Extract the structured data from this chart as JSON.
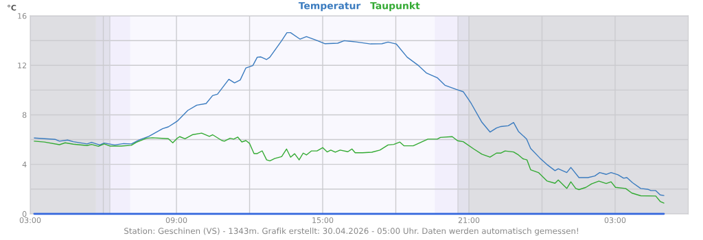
{
  "chart_data": {
    "type": "line",
    "ylabel": "°C",
    "annotations": [
      "Station: Geschinen (VS) - 1343m. Grafik erstellt: 30.04.2026 - 05:00 Uhr. Daten werden automatisch gemessen!"
    ],
    "xlim": [
      "2026-04-29T03:00",
      "2026-04-30T06:00"
    ],
    "xticks": [
      {
        "value": "2026-04-29T03:00",
        "label": "03:00"
      },
      {
        "value": "2026-04-29T06:00",
        "label": null
      },
      {
        "value": "2026-04-29T09:00",
        "label": "09:00"
      },
      {
        "value": "2026-04-29T12:00",
        "label": null
      },
      {
        "value": "2026-04-29T15:00",
        "label": "15:00"
      },
      {
        "value": "2026-04-29T18:00",
        "label": null
      },
      {
        "value": "2026-04-29T21:00",
        "label": "21:00"
      },
      {
        "value": "2026-04-30T00:00",
        "label": null
      },
      {
        "value": "2026-04-30T03:00",
        "label": "03:00"
      }
    ],
    "ylim": [
      0,
      16
    ],
    "yticks": [
      0,
      {
        "value": 2,
        "label": null
      },
      4,
      {
        "value": 6,
        "label": null
      },
      8,
      {
        "value": 10,
        "label": null
      },
      12,
      {
        "value": 14,
        "label": null
      },
      16
    ],
    "grid": true,
    "legend": "top",
    "marker": "none",
    "line_style": "solid",
    "bands": [
      {
        "axis": "x",
        "from": "2026-04-29T03:00",
        "to": "2026-04-29T05:42",
        "color": "#dedee2"
      },
      {
        "axis": "x",
        "from": "2026-04-29T05:42",
        "to": "2026-04-29T06:16",
        "color": "#e2e1ec"
      },
      {
        "axis": "x",
        "from": "2026-04-29T06:16",
        "to": "2026-04-29T07:06",
        "color": "#f2effc"
      },
      {
        "axis": "x",
        "from": "2026-04-29T19:36",
        "to": "2026-04-29T20:33",
        "color": "#f2effc"
      },
      {
        "axis": "x",
        "from": "2026-04-29T20:33",
        "to": "2026-04-29T21:00",
        "color": "#e2e1ec"
      },
      {
        "axis": "x",
        "from": "2026-04-29T21:00",
        "to": "2026-04-30T06:00",
        "color": "#dedee2"
      }
    ],
    "ref_lines": [
      {
        "axis": "x",
        "value": "2026-04-29T06:16",
        "color": "#d0d0d8"
      },
      {
        "axis": "x",
        "value": "2026-04-29T20:33",
        "color": "#d0d0d8"
      }
    ],
    "series": [
      {
        "name": "Temperatur",
        "color": "#3a7bbf",
        "x": [
          "2026-04-29T03:10",
          "2026-04-29T03:35",
          "2026-04-29T04:01",
          "2026-04-29T04:12",
          "2026-04-29T04:32",
          "2026-04-29T04:46",
          "2026-04-29T05:20",
          "2026-04-29T05:31",
          "2026-04-29T05:51",
          "2026-04-29T06:02",
          "2026-04-29T06:28",
          "2026-04-29T06:50",
          "2026-04-29T07:09",
          "2026-04-29T07:29",
          "2026-04-29T07:52",
          "2026-04-29T08:26",
          "2026-04-29T08:40",
          "2026-04-29T09:02",
          "2026-04-29T09:28",
          "2026-04-29T09:50",
          "2026-04-29T10:13",
          "2026-04-29T10:29",
          "2026-04-29T10:41",
          "2026-04-29T11:09",
          "2026-04-29T11:23",
          "2026-04-29T11:37",
          "2026-04-29T11:51",
          "2026-04-29T12:08",
          "2026-04-29T12:19",
          "2026-04-29T12:28",
          "2026-04-29T12:42",
          "2026-04-29T12:50",
          "2026-04-29T13:19",
          "2026-04-29T13:32",
          "2026-04-29T13:41",
          "2026-04-29T14:04",
          "2026-04-29T14:20",
          "2026-04-29T14:43",
          "2026-04-29T15:05",
          "2026-04-29T15:37",
          "2026-04-29T15:53",
          "2026-04-29T16:22",
          "2026-04-29T16:58",
          "2026-04-29T17:26",
          "2026-04-29T17:41",
          "2026-04-29T18:01",
          "2026-04-29T18:28",
          "2026-04-29T18:56",
          "2026-04-29T19:16",
          "2026-04-29T19:42",
          "2026-04-29T20:01",
          "2026-04-29T20:29",
          "2026-04-29T20:46",
          "2026-04-29T21:01",
          "2026-04-29T21:06",
          "2026-04-29T21:32",
          "2026-04-29T21:52",
          "2026-04-29T22:08",
          "2026-04-29T22:19",
          "2026-04-29T22:37",
          "2026-04-29T22:50",
          "2026-04-29T23:02",
          "2026-04-29T23:22",
          "2026-04-29T23:32",
          "2026-04-29T23:55",
          "2026-04-30T00:12",
          "2026-04-30T00:32",
          "2026-04-30T00:40",
          "2026-04-30T01:01",
          "2026-04-30T01:11",
          "2026-04-30T01:31",
          "2026-04-30T01:53",
          "2026-04-30T02:10",
          "2026-04-30T02:22",
          "2026-04-30T02:38",
          "2026-04-30T02:50",
          "2026-04-30T03:07",
          "2026-04-30T03:21",
          "2026-04-30T03:29",
          "2026-04-30T03:43",
          "2026-04-30T04:03",
          "2026-04-30T04:20",
          "2026-04-30T04:28",
          "2026-04-30T04:40",
          "2026-04-30T04:51",
          "2026-04-30T05:00"
        ],
        "values": [
          6.13,
          6.07,
          6.02,
          5.87,
          5.96,
          5.83,
          5.65,
          5.78,
          5.57,
          5.72,
          5.57,
          5.68,
          5.65,
          5.98,
          6.26,
          6.88,
          7.03,
          7.49,
          8.36,
          8.78,
          8.91,
          9.56,
          9.67,
          10.87,
          10.58,
          10.82,
          11.79,
          11.98,
          12.66,
          12.68,
          12.47,
          12.66,
          13.99,
          14.64,
          14.64,
          14.12,
          14.32,
          14.05,
          13.75,
          13.79,
          13.99,
          13.89,
          13.73,
          13.75,
          13.88,
          13.73,
          12.66,
          11.98,
          11.37,
          11.0,
          10.39,
          10.06,
          9.87,
          9.15,
          8.9,
          7.4,
          6.61,
          6.94,
          7.06,
          7.12,
          7.38,
          6.66,
          6.05,
          5.28,
          4.5,
          3.99,
          3.49,
          3.64,
          3.34,
          3.75,
          2.93,
          2.93,
          3.06,
          3.34,
          3.19,
          3.34,
          3.16,
          2.88,
          2.93,
          2.51,
          2.05,
          1.99,
          1.88,
          1.88,
          1.53,
          1.48
        ]
      },
      {
        "name": "Taupunkt",
        "color": "#33aa33",
        "x": [
          "2026-04-29T03:10",
          "2026-04-29T03:35",
          "2026-04-29T04:12",
          "2026-04-29T04:26",
          "2026-04-29T04:46",
          "2026-04-29T05:20",
          "2026-04-29T05:31",
          "2026-04-29T05:48",
          "2026-04-29T06:02",
          "2026-04-29T06:16",
          "2026-04-29T06:44",
          "2026-04-29T07:09",
          "2026-04-29T07:21",
          "2026-04-29T07:46",
          "2026-04-29T08:01",
          "2026-04-29T08:40",
          "2026-04-29T08:51",
          "2026-04-29T09:02",
          "2026-04-29T09:08",
          "2026-04-29T09:21",
          "2026-04-29T09:39",
          "2026-04-29T10:02",
          "2026-04-29T10:21",
          "2026-04-29T10:29",
          "2026-04-29T10:52",
          "2026-04-29T10:58",
          "2026-04-29T11:12",
          "2026-04-29T11:21",
          "2026-04-29T11:31",
          "2026-04-29T11:41",
          "2026-04-29T11:51",
          "2026-04-29T12:00",
          "2026-04-29T12:11",
          "2026-04-29T12:19",
          "2026-04-29T12:31",
          "2026-04-29T12:42",
          "2026-04-29T12:50",
          "2026-04-29T13:02",
          "2026-04-29T13:19",
          "2026-04-29T13:31",
          "2026-04-29T13:41",
          "2026-04-29T13:51",
          "2026-04-29T14:02",
          "2026-04-29T14:12",
          "2026-04-29T14:20",
          "2026-04-29T14:32",
          "2026-04-29T14:46",
          "2026-04-29T15:00",
          "2026-04-29T15:11",
          "2026-04-29T15:20",
          "2026-04-29T15:31",
          "2026-04-29T15:43",
          "2026-04-29T16:02",
          "2026-04-29T16:12",
          "2026-04-29T16:20",
          "2026-04-29T16:38",
          "2026-04-29T17:01",
          "2026-04-29T17:21",
          "2026-04-29T17:41",
          "2026-04-29T17:55",
          "2026-04-29T18:10",
          "2026-04-29T18:20",
          "2026-04-29T18:43",
          "2026-04-29T19:19",
          "2026-04-29T19:42",
          "2026-04-29T19:50",
          "2026-04-29T20:19",
          "2026-04-29T20:32",
          "2026-04-29T20:46",
          "2026-04-29T21:12",
          "2026-04-29T21:32",
          "2026-04-29T21:52",
          "2026-04-29T22:08",
          "2026-04-29T22:19",
          "2026-04-29T22:29",
          "2026-04-29T22:50",
          "2026-04-29T23:02",
          "2026-04-29T23:13",
          "2026-04-29T23:23",
          "2026-04-29T23:32",
          "2026-04-29T23:52",
          "2026-04-30T00:12",
          "2026-04-30T00:32",
          "2026-04-30T00:40",
          "2026-04-30T01:01",
          "2026-04-30T01:11",
          "2026-04-30T01:23",
          "2026-04-30T01:31",
          "2026-04-30T01:48",
          "2026-04-30T02:02",
          "2026-04-30T02:20",
          "2026-04-30T02:38",
          "2026-04-30T02:50",
          "2026-04-30T03:01",
          "2026-04-30T03:26",
          "2026-04-30T03:41",
          "2026-04-30T04:03",
          "2026-04-30T04:40",
          "2026-04-30T04:51",
          "2026-04-30T05:00"
        ],
        "values": [
          5.87,
          5.8,
          5.59,
          5.74,
          5.63,
          5.52,
          5.61,
          5.46,
          5.65,
          5.48,
          5.48,
          5.54,
          5.78,
          6.11,
          6.15,
          6.07,
          5.74,
          6.11,
          6.24,
          6.07,
          6.39,
          6.52,
          6.26,
          6.39,
          5.92,
          5.87,
          6.11,
          6.04,
          6.2,
          5.81,
          5.92,
          5.69,
          4.87,
          4.87,
          5.09,
          4.36,
          4.28,
          4.47,
          4.63,
          5.24,
          4.58,
          4.86,
          4.36,
          4.91,
          4.76,
          5.08,
          5.08,
          5.35,
          5.0,
          5.15,
          4.98,
          5.15,
          5.02,
          5.24,
          4.94,
          4.94,
          4.98,
          5.15,
          5.57,
          5.61,
          5.8,
          5.5,
          5.5,
          6.04,
          6.04,
          6.18,
          6.24,
          5.91,
          5.83,
          5.24,
          4.82,
          4.58,
          4.91,
          4.91,
          5.08,
          5.0,
          4.76,
          4.45,
          4.36,
          3.56,
          3.32,
          2.66,
          2.47,
          2.73,
          2.05,
          2.59,
          2.05,
          1.96,
          2.14,
          2.42,
          2.64,
          2.45,
          2.59,
          2.14,
          2.05,
          1.68,
          1.46,
          1.44,
          1.0,
          0.87
        ]
      },
      {
        "color": "#3366dd",
        "x": [
          "2026-04-29T03:10",
          "2026-04-30T05:00"
        ],
        "values": [
          0,
          0
        ]
      }
    ]
  }
}
